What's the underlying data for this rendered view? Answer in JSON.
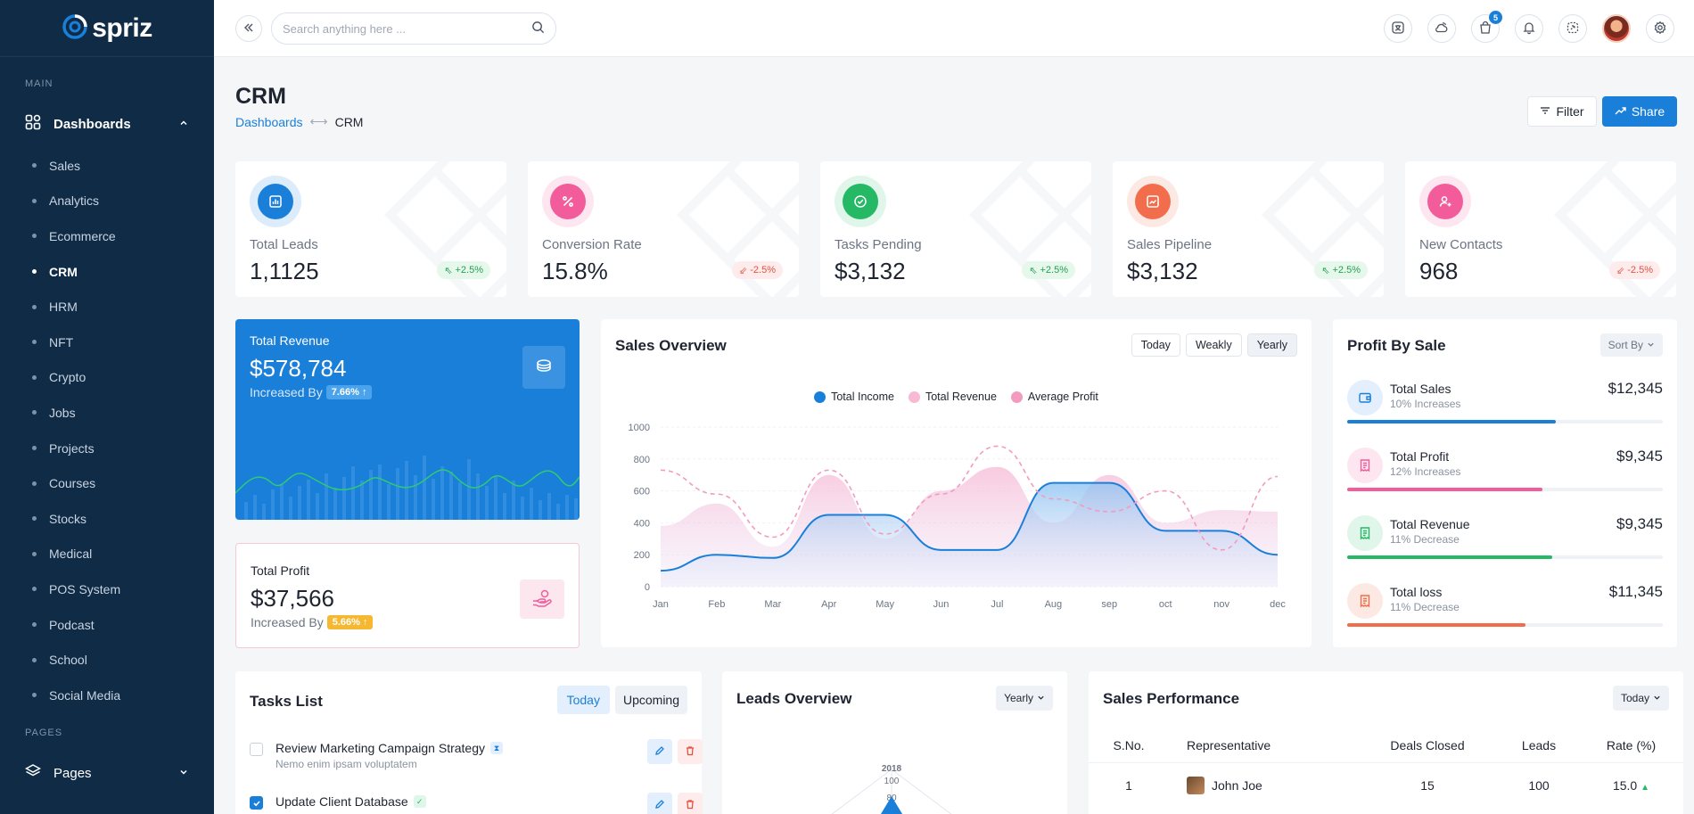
{
  "brand": {
    "name": "spriz"
  },
  "sidebar": {
    "section_main": "MAIN",
    "dashboards_label": "Dashboards",
    "items": [
      "Sales",
      "Analytics",
      "Ecommerce",
      "CRM",
      "HRM",
      "NFT",
      "Crypto",
      "Jobs",
      "Projects",
      "Courses",
      "Stocks",
      "Medical",
      "POS System",
      "Podcast",
      "School",
      "Social Media"
    ],
    "active_item": "CRM",
    "section_pages": "PAGES",
    "pages_label": "Pages"
  },
  "topbar": {
    "search_placeholder": "Search anything here ...",
    "cart_badge": "5",
    "icons": [
      "translate-icon",
      "weather-icon",
      "cart-icon",
      "bell-icon",
      "fullscreen-icon",
      "avatar",
      "settings-icon"
    ]
  },
  "header": {
    "title": "CRM",
    "breadcrumb_parent": "Dashboards",
    "breadcrumb_sep": "⟷",
    "breadcrumb_current": "CRM",
    "filter_label": "Filter",
    "share_label": "Share"
  },
  "stats": [
    {
      "label": "Total Leads",
      "value": "1,1125",
      "change": "+2.5%",
      "trend": "up",
      "color": "#1a7fd9",
      "ring": "#dcecfb",
      "icon": "bar-chart-icon"
    },
    {
      "label": "Conversion Rate",
      "value": "15.8%",
      "change": "-2.5%",
      "trend": "down",
      "color": "#f25c9b",
      "ring": "#fde6f0",
      "icon": "percent-icon"
    },
    {
      "label": "Tasks Pending",
      "value": "$3,132",
      "change": "+2.5%",
      "trend": "up",
      "color": "#25b865",
      "ring": "#e0f6ea",
      "icon": "check-circle-icon"
    },
    {
      "label": "Sales Pipeline",
      "value": "$3,132",
      "change": "+2.5%",
      "trend": "up",
      "color": "#f26d4b",
      "ring": "#fde9e3",
      "icon": "trend-line-icon"
    },
    {
      "label": "New Contacts",
      "value": "968",
      "change": "-2.5%",
      "trend": "down",
      "color": "#f25c9b",
      "ring": "#fde6f0",
      "icon": "add-user-icon"
    }
  ],
  "revenue": {
    "title": "Total Revenue",
    "value": "$578,784",
    "inc_label": "Increased By",
    "inc_value": "7.66%",
    "arrow": "↑"
  },
  "profit": {
    "title": "Total Profit",
    "value": "$37,566",
    "inc_label": "Increased By",
    "inc_value": "5.66%",
    "arrow": "↑"
  },
  "sales_overview": {
    "title": "Sales Overview",
    "filters": [
      "Today",
      "Weakly",
      "Yearly"
    ],
    "active_filter": "Yearly"
  },
  "chart_data": {
    "type": "line",
    "categories": [
      "Jan",
      "Feb",
      "Mar",
      "Apr",
      "May",
      "Jun",
      "Jul",
      "Aug",
      "sep",
      "oct",
      "nov",
      "dec"
    ],
    "ylim": [
      0,
      1000
    ],
    "yticks": [
      0,
      200,
      400,
      600,
      800,
      1000
    ],
    "legend_position": "top",
    "grid": true,
    "series": [
      {
        "name": "Total Income",
        "color": "#1a7fd9",
        "style": "solid-area",
        "values": [
          100,
          200,
          180,
          450,
          450,
          230,
          230,
          650,
          650,
          350,
          350,
          200
        ]
      },
      {
        "name": "Total Revenue",
        "color": "#f7b9d4",
        "style": "area",
        "values": [
          380,
          520,
          250,
          700,
          300,
          600,
          750,
          400,
          700,
          400,
          480,
          470
        ]
      },
      {
        "name": "Average Profit",
        "color": "#f29bbf",
        "style": "dashed",
        "values": [
          730,
          580,
          310,
          730,
          330,
          580,
          880,
          550,
          470,
          600,
          230,
          690
        ]
      }
    ]
  },
  "profit_by_sale": {
    "title": "Profit By Sale",
    "sort_label": "Sort By",
    "rows": [
      {
        "name": "Total Sales",
        "sub": "10% Increases",
        "amount": "$12,345",
        "progress": 0.66,
        "color": "#1a7fd9",
        "bg": "#e3effc",
        "icon": "wallet-icon"
      },
      {
        "name": "Total Profit",
        "sub": "12% Increases",
        "amount": "$9,345",
        "progress": 0.62,
        "color": "#f25c9b",
        "bg": "#fde6f0",
        "icon": "receipt-icon"
      },
      {
        "name": "Total Revenue",
        "sub": "11% Decrease",
        "amount": "$9,345",
        "progress": 0.65,
        "color": "#25b865",
        "bg": "#e0f6ea",
        "icon": "receipt-icon"
      },
      {
        "name": "Total loss",
        "sub": "11% Decrease",
        "amount": "$11,345",
        "progress": 0.565,
        "color": "#f26d4b",
        "bg": "#fde9e3",
        "icon": "receipt-icon"
      }
    ]
  },
  "tasks": {
    "title": "Tasks List",
    "tabs": [
      "Today",
      "Upcoming"
    ],
    "active_tab": "Today",
    "items": [
      {
        "title": "Review Marketing Campaign Strategy",
        "sub": "Nemo enim ipsam voluptatem",
        "checked": false,
        "tag": "hourglass-icon"
      },
      {
        "title": "Update Client Database",
        "sub": "",
        "checked": true,
        "tag": "check-icon"
      }
    ]
  },
  "leads_overview": {
    "title": "Leads Overview",
    "filter": "Yearly",
    "year_label": "2018",
    "tick_labels": [
      "100",
      "80"
    ]
  },
  "sales_performance": {
    "title": "Sales Performance",
    "filter": "Today",
    "columns": [
      "S.No.",
      "Representative",
      "Deals Closed",
      "Leads",
      "Rate (%)"
    ],
    "rows": [
      {
        "sno": "1",
        "rep": "John Joe",
        "deals": "15",
        "leads": "100",
        "rate": "15.0",
        "trend": "up"
      }
    ]
  }
}
